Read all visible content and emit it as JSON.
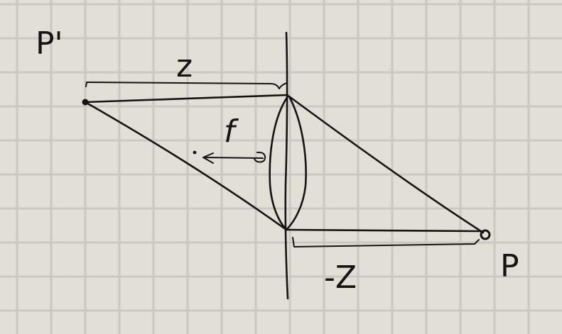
{
  "labels": {
    "image_point": "P'",
    "object_point": "P",
    "image_distance": "z",
    "object_distance": "-Z",
    "focal_length": "f"
  },
  "colors": {
    "paper": "#e2e0d6",
    "grid": "#c9c8c2",
    "ink": "#141414"
  }
}
